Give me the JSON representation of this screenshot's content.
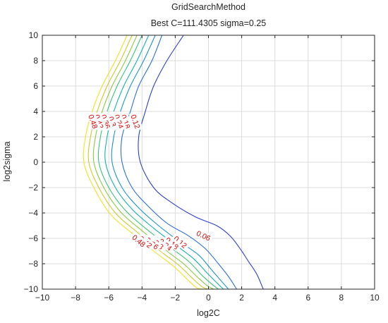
{
  "chart_data": {
    "type": "contour",
    "title": "GridSearchMethod",
    "subtitle": "Best C=111.4305 sigma=0.25",
    "xlabel": "log2C",
    "ylabel": "log2sigma",
    "xlim": [
      -10,
      10
    ],
    "ylim": [
      -10,
      10
    ],
    "xticks": [
      -10,
      -8,
      -6,
      -4,
      -2,
      0,
      2,
      4,
      6,
      8,
      10
    ],
    "yticks": [
      -10,
      -8,
      -6,
      -4,
      -2,
      0,
      2,
      4,
      6,
      8,
      10
    ],
    "grid": true,
    "levels": [
      {
        "value": 0.06,
        "color": "#2b3fd6",
        "label": "0.06",
        "points": [
          [
            -1.5,
            10
          ],
          [
            -2.5,
            8
          ],
          [
            -3.3,
            6
          ],
          [
            -3.8,
            4
          ],
          [
            -4.2,
            2
          ],
          [
            -4.1,
            0
          ],
          [
            -3.3,
            -2
          ],
          [
            -2.2,
            -3.2
          ],
          [
            -0.8,
            -4.3
          ],
          [
            0.5,
            -5
          ],
          [
            1.3,
            -5.8
          ],
          [
            1.9,
            -6.8
          ],
          [
            2.4,
            -7.8
          ],
          [
            2.9,
            -8.8
          ],
          [
            3.3,
            -10
          ]
        ],
        "label_at": [
          -0.3,
          -5.8
        ]
      },
      {
        "value": 0.12,
        "color": "#2a6fe0",
        "label": "0.12",
        "points": [
          [
            -2.8,
            10
          ],
          [
            -3.4,
            8
          ],
          [
            -4.2,
            6
          ],
          [
            -4.7,
            4
          ],
          [
            -5.2,
            2
          ],
          [
            -5.2,
            0
          ],
          [
            -4.6,
            -2
          ],
          [
            -3.6,
            -3.5
          ],
          [
            -2.5,
            -4.8
          ],
          [
            -1.2,
            -5.8
          ],
          [
            -0.2,
            -6.8
          ],
          [
            0.6,
            -8
          ],
          [
            1.2,
            -9
          ],
          [
            1.7,
            -10
          ]
        ],
        "label_at": [
          -4.4,
          3.2
        ]
      },
      {
        "value": 0.18,
        "color": "#1a95d0",
        "label": "0.18",
        "points": [
          [
            -3.2,
            10
          ],
          [
            -3.9,
            8
          ],
          [
            -4.7,
            6
          ],
          [
            -5.3,
            4
          ],
          [
            -5.7,
            2
          ],
          [
            -5.8,
            0
          ],
          [
            -5.2,
            -2
          ],
          [
            -4.2,
            -3.6
          ],
          [
            -3,
            -5
          ],
          [
            -1.8,
            -6.2
          ],
          [
            -0.6,
            -7.3
          ],
          [
            0.2,
            -8.5
          ],
          [
            0.8,
            -9.4
          ],
          [
            1.2,
            -10
          ]
        ],
        "label_at": [
          -5,
          3.2
        ]
      },
      {
        "value": 0.24,
        "color": "#12b5b0",
        "label": "0.24",
        "points": [
          [
            -3.6,
            10
          ],
          [
            -4.3,
            8
          ],
          [
            -5.1,
            6
          ],
          [
            -5.7,
            4
          ],
          [
            -6.1,
            2
          ],
          [
            -6.2,
            0
          ],
          [
            -5.6,
            -2
          ],
          [
            -4.6,
            -3.7
          ],
          [
            -3.3,
            -5.2
          ],
          [
            -2.1,
            -6.4
          ],
          [
            -0.9,
            -7.6
          ],
          [
            -0.1,
            -8.7
          ],
          [
            0.5,
            -9.5
          ],
          [
            0.9,
            -10
          ]
        ],
        "label_at": [
          -5.4,
          3.2
        ]
      },
      {
        "value": 0.3,
        "color": "#3cc47a",
        "label": "0.3",
        "points": [
          [
            -4,
            10
          ],
          [
            -4.7,
            8
          ],
          [
            -5.5,
            6
          ],
          [
            -6.1,
            4
          ],
          [
            -6.5,
            2
          ],
          [
            -6.6,
            0
          ],
          [
            -6,
            -2
          ],
          [
            -5,
            -3.8
          ],
          [
            -3.7,
            -5.3
          ],
          [
            -2.4,
            -6.6
          ],
          [
            -1.2,
            -7.8
          ],
          [
            -0.4,
            -8.9
          ],
          [
            0.2,
            -9.6
          ],
          [
            0.6,
            -10
          ]
        ],
        "label_at": [
          -5.8,
          3.2
        ]
      },
      {
        "value": 0.36,
        "color": "#8dca42",
        "label": "0.36",
        "points": [
          [
            -4.3,
            10
          ],
          [
            -5,
            8
          ],
          [
            -5.8,
            6
          ],
          [
            -6.4,
            4
          ],
          [
            -6.8,
            2
          ],
          [
            -6.9,
            0
          ],
          [
            -6.3,
            -2
          ],
          [
            -5.3,
            -3.9
          ],
          [
            -4,
            -5.4
          ],
          [
            -2.7,
            -6.8
          ],
          [
            -1.5,
            -8
          ],
          [
            -0.7,
            -9
          ],
          [
            -0.1,
            -9.7
          ],
          [
            0.3,
            -10
          ]
        ],
        "label_at": [
          -6.2,
          3.2
        ]
      },
      {
        "value": 0.42,
        "color": "#d3c825",
        "label": "0.42",
        "points": [
          [
            -4.6,
            10
          ],
          [
            -5.3,
            8
          ],
          [
            -6.1,
            6
          ],
          [
            -6.7,
            4
          ],
          [
            -7.1,
            2
          ],
          [
            -7.2,
            0
          ],
          [
            -6.6,
            -2
          ],
          [
            -5.6,
            -4
          ],
          [
            -4.3,
            -5.5
          ],
          [
            -3,
            -6.9
          ],
          [
            -1.8,
            -8.1
          ],
          [
            -1,
            -9.1
          ],
          [
            -0.4,
            -9.8
          ],
          [
            0,
            -10
          ]
        ],
        "label_at": [
          -6.6,
          3.2
        ]
      },
      {
        "value": 0.48,
        "color": "#f5e11c",
        "label": "0.48",
        "points": [
          [
            -4.9,
            10
          ],
          [
            -5.6,
            8
          ],
          [
            -6.4,
            6
          ],
          [
            -7,
            4
          ],
          [
            -7.4,
            2
          ],
          [
            -7.5,
            0
          ],
          [
            -6.9,
            -2
          ],
          [
            -5.9,
            -4.1
          ],
          [
            -4.6,
            -5.6
          ],
          [
            -3.3,
            -7
          ],
          [
            -2.1,
            -8.2
          ],
          [
            -1.3,
            -9.2
          ],
          [
            -0.7,
            -9.9
          ],
          [
            -0.3,
            -10
          ]
        ],
        "label_at": [
          -6.95,
          3.2
        ]
      }
    ],
    "bottom_labels": [
      {
        "text": "0.12",
        "at": [
          -1.7,
          -6.3
        ]
      },
      {
        "text": "0.18",
        "at": [
          -2.2,
          -6.4
        ]
      },
      {
        "text": "0.24",
        "at": [
          -2.6,
          -6.5
        ]
      },
      {
        "text": "0.3",
        "at": [
          -3,
          -6.5
        ]
      },
      {
        "text": "0.36",
        "at": [
          -3.4,
          -6.4
        ]
      },
      {
        "text": "0.42",
        "at": [
          -3.8,
          -6.3
        ]
      },
      {
        "text": "0.48",
        "at": [
          -4.2,
          -6.2
        ]
      }
    ]
  }
}
